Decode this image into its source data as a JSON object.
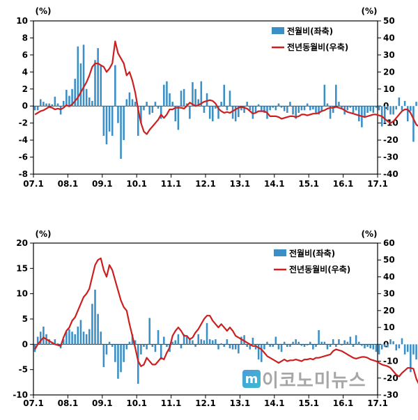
{
  "colors": {
    "bar": "#3a8fc7",
    "line": "#cc1f1f"
  },
  "legend_labels": {
    "bar": "전월비(좌축)",
    "line": "전년동월비(우축)"
  },
  "watermark": {
    "logo": "m",
    "text": "이코노미뉴스"
  },
  "chart_data": [
    {
      "type": "bar",
      "unit_left": "(%)",
      "unit_right": "(%)",
      "x_start": "2007-01",
      "x_ticks": [
        "07.1",
        "08.1",
        "09.1",
        "10.1",
        "11.1",
        "12.1",
        "13.1",
        "14.1",
        "15.1",
        "16.1",
        "17.1"
      ],
      "ylim_left": [
        -8,
        10
      ],
      "yticks_left": [
        -8,
        -6,
        -4,
        -2,
        0,
        2,
        4,
        6,
        8,
        10
      ],
      "ylim_right": [
        -40,
        50
      ],
      "yticks_right": [
        -40,
        -30,
        -20,
        -10,
        0,
        10,
        20,
        30,
        40,
        50
      ],
      "grid": false,
      "legend_position": "top-right",
      "series": [
        {
          "name": "전월비(좌축)",
          "type": "bar",
          "axis": "left",
          "values": [
            -0.5,
            -0.5,
            0.8,
            0.5,
            0.3,
            0.3,
            0.2,
            1.1,
            0.3,
            -1.0,
            0.6,
            1.9,
            1.2,
            2.0,
            3.2,
            7.0,
            5.0,
            7.2,
            2.0,
            1.0,
            0.6,
            5.4,
            6.8,
            4.8,
            -3.5,
            -4.5,
            -3.0,
            -3.5,
            4.8,
            -2.0,
            -6.2,
            -4.0,
            0.8,
            1.6,
            0.8,
            0.5,
            -3.5,
            -2.0,
            -0.5,
            0.5,
            -1.0,
            -0.8,
            0.5,
            -0.3,
            -1.5,
            2.5,
            2.9,
            1.5,
            0.5,
            -1.8,
            -2.8,
            1.8,
            2.0,
            0.3,
            -1.5,
            2.8,
            2.0,
            0.8,
            2.9,
            -0.8,
            1.5,
            -1.5,
            -1.8,
            -0.3,
            -1.5,
            0.5,
            2.5,
            -0.5,
            1.8,
            -1.5,
            -1.8,
            -1.3,
            -0.5,
            -0.8,
            0.5,
            -0.5,
            -1.5,
            -0.8,
            0.2,
            -0.6,
            -0.8,
            -1.5,
            -0.5,
            -0.2,
            -0.5,
            0.3,
            -0.2,
            -0.6,
            -0.8,
            0.5,
            -1.0,
            -1.5,
            -0.8,
            -0.5,
            -0.5,
            0.3,
            -0.5,
            -0.4,
            -0.8,
            -1.0,
            -0.6,
            2.5,
            0.3,
            -1.5,
            -0.8,
            2.5,
            0.5,
            -0.3,
            -1.0,
            -0.5,
            -0.2,
            -0.8,
            -0.5,
            -1.8,
            -2.5,
            -1.2,
            -0.8,
            -0.6,
            -0.8,
            -0.2,
            -0.5,
            -2.4,
            -2.0,
            -0.5,
            -1.0,
            -1.0,
            -0.4,
            1.0,
            -0.5,
            0.6,
            -1.8,
            -0.6,
            -4.2,
            0.5,
            -3.0,
            1.3,
            1.1,
            1.2,
            -1.5,
            0.8,
            1.4,
            0.8,
            0.6,
            -0.8,
            -1.0,
            -1.2,
            -3.8,
            -2.5,
            1.0,
            0.5,
            1.2,
            -0.6,
            -0.8,
            -1.8,
            -1.6,
            -2.3,
            -1.0,
            0.8,
            3.3,
            3.6,
            3.8,
            3.1,
            2.5
          ],
          "color": "#3a8fc7"
        },
        {
          "name": "전년동월비(우축)",
          "type": "line",
          "axis": "right",
          "values": [
            -5.0,
            -4.0,
            -3.0,
            -2.5,
            -1.5,
            -0.5,
            -1.0,
            -2.0,
            -1.5,
            -2.0,
            -1.0,
            0.5,
            -0.2,
            1.0,
            3.0,
            5.0,
            8.0,
            11.0,
            14.0,
            18.0,
            23.0,
            25.0,
            25.0,
            24.0,
            23.0,
            20.0,
            22.0,
            25.0,
            38.0,
            31.0,
            28.0,
            25.0,
            18.0,
            20.0,
            15.0,
            8.0,
            -2.0,
            -10.0,
            -15.0,
            -16.5,
            -14.0,
            -12.0,
            -10.0,
            -8.0,
            -5.0,
            -7.0,
            -5.0,
            -2.0,
            -2.0,
            -1.0,
            -1.0,
            -1.0,
            -1.5,
            0.0,
            2.0,
            1.0,
            0.0,
            0.5,
            1.5,
            2.5,
            3.0,
            3.5,
            3.0,
            1.5,
            -1.5,
            -3.0,
            -4.0,
            -3.5,
            -4.0,
            -3.0,
            -2.0,
            -1.0,
            -0.5,
            -1.0,
            -1.5,
            -3.0,
            -4.5,
            -4.0,
            -3.0,
            -3.0,
            -3.0,
            -4.0,
            -6.0,
            -6.0,
            -6.0,
            -6.5,
            -7.5,
            -7.0,
            -6.5,
            -6.0,
            -6.0,
            -6.5,
            -6.0,
            -5.0,
            -5.0,
            -5.5,
            -5.0,
            -4.5,
            -4.5,
            -4.0,
            -3.0,
            -2.5,
            -1.5,
            -1.0,
            -1.0,
            -0.5,
            -1.0,
            -1.5,
            -2.5,
            -3.5,
            -4.0,
            -4.5,
            -5.0,
            -5.5,
            -6.0,
            -6.5,
            -6.0,
            -5.5,
            -5.0,
            -5.0,
            -5.5,
            -6.0,
            -7.5,
            -9.0,
            -10.0,
            -9.0,
            -7.0,
            -5.0,
            -3.0,
            -2.0,
            -2.0,
            -4.0,
            -7.5,
            -11.0,
            -12.0,
            -10.0,
            -7.0,
            -5.0,
            -3.5,
            -3.5,
            -4.0,
            -4.5,
            -5.5,
            -6.0,
            -6.5,
            -6.0,
            -7.0,
            -8.5,
            -8.5,
            -9.0,
            -8.0,
            -6.5,
            -6.5,
            -7.0,
            -8.0,
            -8.5,
            -9.0,
            -8.0,
            -6.0,
            -3.0,
            0.0,
            3.5,
            5.0,
            7.0,
            7.5
          ],
          "color": "#cc1f1f"
        }
      ]
    },
    {
      "type": "bar",
      "unit_left": "(%)",
      "unit_right": "(%)",
      "x_start": "2007-01",
      "x_ticks": [
        "07.1",
        "08.1",
        "09.1",
        "10.1",
        "11.1",
        "12.1",
        "13.1",
        "14.1",
        "15.1",
        "16.1",
        "17.1"
      ],
      "ylim_left": [
        -10,
        20
      ],
      "yticks_left": [
        -10,
        -5,
        0,
        5,
        10,
        15,
        20
      ],
      "ylim_right": [
        -30,
        60
      ],
      "yticks_right": [
        -30,
        -20,
        -10,
        0,
        10,
        20,
        30,
        40,
        50,
        60
      ],
      "grid": false,
      "legend_position": "top-right",
      "series": [
        {
          "name": "전월비(좌축)",
          "type": "bar",
          "axis": "left",
          "values": [
            -1.5,
            1.5,
            2.5,
            3.5,
            2.0,
            1.0,
            0.5,
            1.0,
            0.2,
            -0.8,
            1.0,
            2.5,
            3.0,
            2.5,
            2.0,
            3.5,
            4.8,
            2.5,
            2.0,
            3.0,
            8.0,
            10.8,
            6.0,
            2.5,
            -4.5,
            -2.0,
            0.5,
            -0.5,
            -3.5,
            -6.8,
            -5.5,
            -3.5,
            -1.0,
            0.5,
            2.0,
            0.8,
            -7.8,
            -2.0,
            -0.5,
            -1.0,
            5.2,
            -0.5,
            -1.5,
            2.8,
            -3.0,
            1.5,
            -0.5,
            -1.5,
            0.5,
            0.8,
            2.0,
            -0.8,
            2.0,
            1.5,
            1.0,
            0.8,
            -0.5,
            2.0,
            1.0,
            0.8,
            4.2,
            1.0,
            0.8,
            1.0,
            -1.0,
            0.2,
            -0.5,
            1.0,
            -0.8,
            -1.0,
            -1.0,
            -1.8,
            1.5,
            1.8,
            -0.5,
            -1.0,
            1.3,
            -1.0,
            -3.0,
            -3.5,
            -1.0,
            0.5,
            -0.5,
            -0.5,
            1.5,
            -1.0,
            -1.5,
            0.5,
            -0.5,
            -0.5,
            0.5,
            1.0,
            0.5,
            -0.3,
            -0.5,
            -0.2,
            0.5,
            -1.0,
            -0.5,
            2.8,
            0.5,
            0.5,
            -1.0,
            -0.5,
            1.0,
            -0.5,
            1.0,
            -0.2,
            0.8,
            0.5,
            1.5,
            -0.5,
            1.8,
            0.5,
            -0.3,
            -0.8,
            -0.5,
            -0.8,
            -1.0,
            -1.5,
            -2.0,
            -1.0,
            -0.5,
            -0.6,
            1.0,
            0.6,
            -1.2,
            -0.8,
            1.2,
            -2.0,
            -1.5,
            -5.5,
            -2.0,
            -3.0,
            2.2,
            1.0,
            2.5,
            -2.5,
            0.8,
            0.8,
            1.8,
            1.5,
            0.8,
            1.2,
            1.5,
            1.0,
            1.0,
            -0.8,
            -1.5,
            -2.5,
            0.8,
            1.5,
            0.5,
            -0.5,
            0.5,
            -1.5,
            -0.5,
            0.8,
            4.5,
            0.6,
            2.5,
            4.2,
            2.0
          ],
          "color": "#3a8fc7"
        },
        {
          "name": "전년동월비(우축)",
          "type": "line",
          "axis": "right",
          "values": [
            -3.0,
            0.0,
            2.0,
            4.0,
            3.0,
            2.0,
            1.0,
            0.0,
            -0.5,
            -1.0,
            4.0,
            8.0,
            10.0,
            14.0,
            16.0,
            20.0,
            24.0,
            28.0,
            30.0,
            33.0,
            40.0,
            47.0,
            50.0,
            51.0,
            44.0,
            40.0,
            47.0,
            44.0,
            38.0,
            32.0,
            26.0,
            22.0,
            20.0,
            12.0,
            5.0,
            -2.0,
            -10.0,
            -13.0,
            -12.0,
            -8.0,
            -10.0,
            -12.0,
            -12.0,
            -10.0,
            -8.0,
            -9.0,
            -5.0,
            -2.0,
            5.0,
            8.0,
            10.0,
            8.0,
            5.0,
            5.0,
            3.0,
            4.0,
            7.0,
            9.0,
            12.0,
            15.0,
            17.0,
            17.0,
            14.0,
            12.0,
            10.0,
            12.0,
            10.0,
            8.0,
            10.0,
            8.0,
            5.0,
            4.0,
            3.0,
            2.0,
            1.0,
            0.0,
            -1.0,
            -1.0,
            -2.0,
            -3.0,
            -5.0,
            -7.0,
            -8.0,
            -9.0,
            -10.0,
            -11.0,
            -10.0,
            -9.0,
            -10.0,
            -9.5,
            -9.5,
            -9.0,
            -9.5,
            -10.0,
            -9.0,
            -9.0,
            -8.5,
            -9.0,
            -8.0,
            -8.0,
            -7.5,
            -7.0,
            -6.5,
            -6.0,
            -4.0,
            -3.0,
            -3.5,
            -4.0,
            -5.0,
            -6.0,
            -7.0,
            -8.0,
            -8.5,
            -8.0,
            -7.5,
            -7.5,
            -8.0,
            -9.0,
            -9.5,
            -10.0,
            -11.0,
            -12.0,
            -12.5,
            -13.0,
            -14.0,
            -16.0,
            -18.0,
            -19.0,
            -17.0,
            -15.5,
            -14.0,
            -14.0,
            -14.5,
            -20.5,
            -24.0,
            -24.0,
            -23.0,
            -19.0,
            -17.0,
            -15.0,
            -15.0,
            -14.0,
            -14.5,
            -14.0,
            -13.0,
            -13.5,
            -13.0,
            -12.5,
            -11.0,
            -10.0,
            -10.0,
            -12.0,
            -13.0,
            -13.5,
            -14.0,
            -15.0,
            -15.5,
            -12.0,
            -8.0,
            -3.0,
            2.0,
            6.5,
            8.0,
            8.0
          ],
          "color": "#cc1f1f"
        }
      ]
    }
  ]
}
